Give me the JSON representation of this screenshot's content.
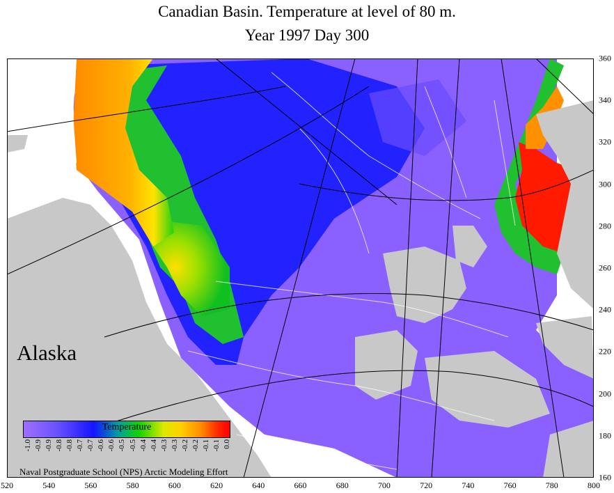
{
  "title": "Canadian Basin. Temperature at level of 80 m.",
  "subtitle": "Year 1997   Day   300",
  "region_label": "Alaska",
  "legend": {
    "title": "Temperature",
    "ticks": [
      "-1.0",
      "-0.9",
      "-0.9",
      "-0.8",
      "-0.8",
      "-0.7",
      "-0.7",
      "-0.6",
      "-0.6",
      "-0.5",
      "-0.5",
      "-0.4",
      "-0.4",
      "-0.3",
      "-0.3",
      "-0.2",
      "-0.2",
      "-0.1",
      "-0.1",
      "0.0"
    ],
    "colors": [
      "#a06eff",
      "#6b52ff",
      "#1414ff",
      "#00a0a0",
      "#12d400",
      "#dde800",
      "#ffd000",
      "#ff8c00",
      "#ff2a00",
      "#ff0000"
    ]
  },
  "credit": "Naval Postgraduate School (NPS) Arctic Modeling Effort",
  "x_ticks": [
    "520",
    "540",
    "560",
    "580",
    "600",
    "620",
    "640",
    "660",
    "680",
    "700",
    "720",
    "740",
    "760",
    "780",
    "800"
  ],
  "y_ticks": [
    "360",
    "340",
    "320",
    "300",
    "280",
    "260",
    "240",
    "220",
    "200",
    "180",
    "160"
  ],
  "colors": {
    "land": "#c8c8c8",
    "ocean_cold": "#8a60ff",
    "ocean_mid": "#2020ff",
    "green": "#20d010",
    "yellow": "#e8e800",
    "orange": "#ff9000",
    "red": "#ff1000"
  }
}
